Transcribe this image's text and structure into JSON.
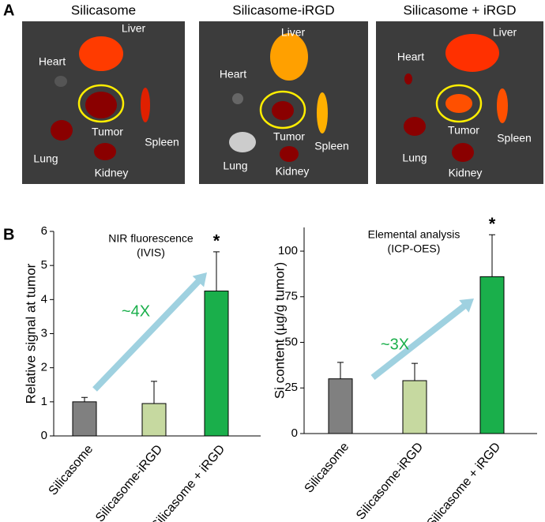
{
  "panel_labels": [
    "A",
    "B"
  ],
  "panel_a": [
    {
      "title": "Silicasome",
      "labels": [
        "Liver",
        "Heart",
        "Tumor",
        "Spleen",
        "Lung",
        "Kidney"
      ]
    },
    {
      "title": "Silicasome-iRGD",
      "labels": [
        "Liver",
        "Heart",
        "Tumor",
        "Spleen",
        "Lung",
        "Kidney"
      ]
    },
    {
      "title": "Silicasome + iRGD",
      "labels": [
        "Liver",
        "Heart",
        "Tumor",
        "Spleen",
        "Lung",
        "Kidney"
      ]
    }
  ],
  "chart_data": [
    {
      "type": "bar",
      "annotation": [
        "NIR fluorescence",
        "(IVIS)"
      ],
      "y_label": "Relative signal at tumor",
      "categories": [
        "Silicasome",
        "Silicasome-iRGD",
        "Silicasome + iRGD"
      ],
      "series": [
        {
          "values": [
            1.0,
            0.95,
            4.25
          ],
          "errors": [
            0.13,
            0.65,
            1.15
          ],
          "colors": [
            "#808080",
            "#c6d9a0",
            "#1aaf4b"
          ]
        }
      ],
      "significance_labels": [
        null,
        null,
        "*"
      ],
      "fold_change": "~4X",
      "ylim": [
        0,
        6
      ],
      "yticks": [
        0,
        1,
        2,
        3,
        4,
        5,
        6
      ]
    },
    {
      "type": "bar",
      "annotation": [
        "Elemental analysis",
        "(ICP-OES)"
      ],
      "y_label": "Si content (µg/g tumor)",
      "categories": [
        "Silicasome",
        "Silicasome-iRGD",
        "Silicasome + iRGD"
      ],
      "series": [
        {
          "values": [
            30,
            29,
            86
          ],
          "errors": [
            9,
            9.5,
            23
          ],
          "colors": [
            "#808080",
            "#c6d9a0",
            "#1aaf4b"
          ]
        }
      ],
      "significance_labels": [
        null,
        null,
        "*"
      ],
      "fold_change": "~3X",
      "ylim": [
        0,
        113
      ],
      "yticks": [
        0,
        25,
        50,
        75,
        100
      ]
    }
  ]
}
